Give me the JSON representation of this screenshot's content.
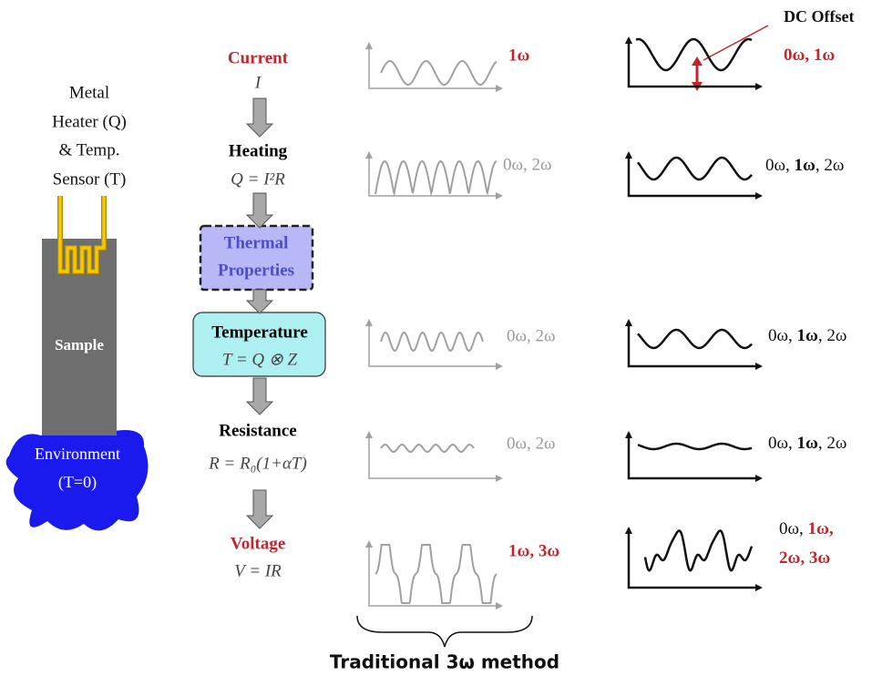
{
  "sample_diagram": {
    "heater_label": [
      "Metal",
      "Heater (Q)",
      "& Temp.",
      "Sensor (T)"
    ],
    "sample": "Sample",
    "environment": [
      "Environment",
      "(T=0)"
    ]
  },
  "flow": [
    {
      "label": "Current",
      "formula": "I"
    },
    {
      "label": "Heating",
      "formula": "Q = I²R"
    },
    {
      "label": "Temperature",
      "formula": "T = Q ⊗ Z"
    },
    {
      "label": "Resistance",
      "formula": "R = R₀(1+αT)"
    },
    {
      "label": "Voltage",
      "formula": "V = IR"
    }
  ],
  "thermal_properties": [
    "Thermal",
    "Properties"
  ],
  "traditional_harmonics": [
    "1ω",
    "0ω, 2ω",
    "0ω, 2ω",
    "0ω, 2ω",
    "1ω, 3ω"
  ],
  "harmonics_with_offset": [
    [
      "0ω, 1ω"
    ],
    [
      "0ω, ",
      "1ω",
      ", 2ω"
    ],
    [
      "0ω, ",
      "1ω",
      ", 2ω"
    ],
    [
      "0ω, ",
      "1ω",
      ", 2ω"
    ],
    [
      "0ω, ",
      "1ω,",
      "2ω, 3ω"
    ]
  ],
  "dc_offset_label": "DC Offset",
  "caption": "Traditional 3ω method"
}
